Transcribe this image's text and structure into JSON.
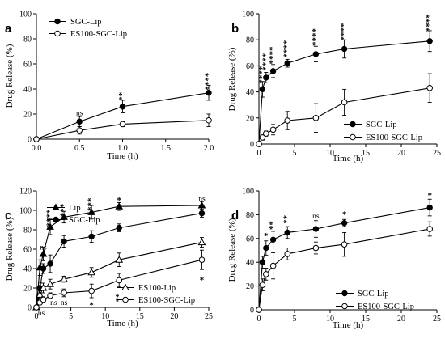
{
  "chart_data": [
    {
      "type": "line",
      "panel_label": "a",
      "xlabel": "Time (h)",
      "ylabel": "Drug Release  (%)",
      "xlim": [
        0,
        2.0
      ],
      "ylim": [
        0,
        100
      ],
      "xticks": [
        "0.0",
        "0.5",
        "1.0",
        "1.5",
        "2.0"
      ],
      "yticks": [
        "0",
        "20",
        "40",
        "60",
        "80",
        "100"
      ],
      "legend": "top-left",
      "series": [
        {
          "name": "SGC-Lip",
          "marker": "filled-circle",
          "x": [
            0,
            0.5,
            1.0,
            2.0
          ],
          "y": [
            0,
            14,
            26,
            37
          ],
          "err": [
            0,
            4,
            5,
            6
          ]
        },
        {
          "name": "ES100-SGC-Lip",
          "marker": "open-circle",
          "x": [
            0,
            0.5,
            1.0,
            2.0
          ],
          "y": [
            0,
            7,
            12,
            15
          ],
          "err": [
            0,
            3,
            2,
            5
          ]
        }
      ],
      "annotations": [
        {
          "text": "ns",
          "x": 0.5,
          "y": 21
        },
        {
          "text": "**",
          "x": 1.0,
          "y": 34
        },
        {
          "text": "****",
          "x": 2.0,
          "y": 46
        }
      ]
    },
    {
      "type": "line",
      "panel_label": "b",
      "xlabel": "Time (h)",
      "ylabel": "Drug Release  (%)",
      "xlim": [
        0,
        25
      ],
      "ylim": [
        0,
        100
      ],
      "xticks": [
        "0",
        "5",
        "10",
        "15",
        "20",
        "25"
      ],
      "yticks": [
        "0",
        "20",
        "40",
        "60",
        "80",
        "100"
      ],
      "legend": "bottom-right",
      "series": [
        {
          "name": "SGC-Lip",
          "marker": "filled-circle",
          "x": [
            0,
            0.5,
            1,
            2,
            4,
            8,
            12,
            24
          ],
          "y": [
            0,
            42,
            51,
            56,
            62,
            69,
            73,
            79
          ],
          "err": [
            0,
            6,
            4,
            5,
            3,
            6,
            7,
            8
          ]
        },
        {
          "name": "ES100-SGC-Lip",
          "marker": "open-circle",
          "x": [
            0,
            0.5,
            1,
            2,
            4,
            8,
            12,
            24
          ],
          "y": [
            0,
            5,
            8,
            11,
            18,
            20,
            32,
            43
          ],
          "err": [
            0,
            2,
            2,
            4,
            7,
            11,
            10,
            11
          ]
        }
      ],
      "annotations": [
        {
          "text": "****",
          "x": 0.5,
          "y": 53
        },
        {
          "text": "****",
          "x": 1,
          "y": 63
        },
        {
          "text": "****",
          "x": 2,
          "y": 68
        },
        {
          "text": "****",
          "x": 4,
          "y": 73
        },
        {
          "text": "****",
          "x": 8,
          "y": 82
        },
        {
          "text": "****",
          "x": 12,
          "y": 86
        },
        {
          "text": "****",
          "x": 24,
          "y": 93
        }
      ]
    },
    {
      "type": "line",
      "panel_label": "c",
      "xlabel": "Time (h)",
      "ylabel": "Drug Release  (%)",
      "xlim": [
        0,
        25
      ],
      "ylim": [
        0,
        120
      ],
      "xticks": [
        "0",
        "5",
        "10",
        "15",
        "20",
        "25"
      ],
      "yticks": [
        "0",
        "20",
        "40",
        "60",
        "80",
        "100",
        "120"
      ],
      "legend": "top-left and bottom-right",
      "series": [
        {
          "name": "Lip",
          "marker": "filled-triangle",
          "x": [
            0,
            0.5,
            1,
            2,
            4,
            8,
            12,
            24
          ],
          "y": [
            0,
            41,
            55,
            83,
            93,
            98,
            104,
            105
          ],
          "err": [
            0,
            8,
            7,
            8,
            6,
            7,
            4,
            4
          ]
        },
        {
          "name": "SGC-Lip",
          "marker": "filled-circle",
          "x": [
            0,
            0.5,
            1,
            2,
            4,
            8,
            12,
            24
          ],
          "y": [
            0,
            20,
            40,
            45,
            68,
            73,
            82,
            97
          ],
          "err": [
            0,
            6,
            5,
            9,
            6,
            6,
            4,
            4
          ]
        },
        {
          "name": "ES100-Lip",
          "marker": "open-triangle",
          "x": [
            0,
            0.5,
            1,
            2,
            4,
            8,
            12,
            24
          ],
          "y": [
            0,
            13,
            20,
            24,
            29,
            36,
            49,
            67
          ],
          "err": [
            0,
            4,
            5,
            5,
            3,
            5,
            7,
            5
          ]
        },
        {
          "name": "ES100-SGC-Lip",
          "marker": "open-circle",
          "x": [
            0,
            0.5,
            1,
            2,
            4,
            8,
            12,
            24
          ],
          "y": [
            0,
            5,
            8,
            12,
            15,
            17,
            28,
            49
          ],
          "err": [
            0,
            2,
            3,
            3,
            4,
            7,
            7,
            10
          ]
        }
      ],
      "annotations": [
        {
          "text": "ns",
          "x": 1,
          "y": 62
        },
        {
          "text": "****",
          "x": 2,
          "y": 92
        },
        {
          "text": "***",
          "x": 4,
          "y": 100
        },
        {
          "text": "***",
          "x": 8,
          "y": 106
        },
        {
          "text": "*",
          "x": 12,
          "y": 110
        },
        {
          "text": "ns",
          "x": 24,
          "y": 112
        },
        {
          "text": "ns",
          "x": 0.7,
          "y": -6
        },
        {
          "text": "ns",
          "x": 2.5,
          "y": 5
        },
        {
          "text": "ns",
          "x": 4,
          "y": 5
        },
        {
          "text": "*",
          "x": 8,
          "y": 2
        },
        {
          "text": "**",
          "x": 12,
          "y": 10
        },
        {
          "text": "*",
          "x": 24,
          "y": 28
        }
      ]
    },
    {
      "type": "line",
      "panel_label": "d",
      "xlabel": "Time (h)",
      "ylabel": "Drug Release  (%)",
      "xlim": [
        0,
        25
      ],
      "ylim": [
        0,
        100
      ],
      "xticks": [
        "0",
        "5",
        "10",
        "15",
        "20",
        "25"
      ],
      "yticks": [
        "0",
        "20",
        "40",
        "60",
        "80",
        "100"
      ],
      "legend": "bottom-right",
      "series": [
        {
          "name": "SGC-Lip",
          "marker": "filled-circle",
          "x": [
            0,
            0.5,
            1,
            2,
            4,
            8,
            12,
            24
          ],
          "y": [
            0,
            40,
            52,
            59,
            65,
            68,
            73,
            86
          ],
          "err": [
            0,
            5,
            6,
            7,
            5,
            7,
            3,
            7
          ]
        },
        {
          "name": "ES100-SGC-Lip",
          "marker": "open-circle",
          "x": [
            0,
            0.5,
            1,
            2,
            4,
            8,
            12,
            24
          ],
          "y": [
            0,
            21,
            30,
            37,
            47,
            52,
            55,
            68
          ],
          "err": [
            0,
            5,
            5,
            11,
            5,
            5,
            10,
            6
          ]
        }
      ],
      "annotations": [
        {
          "text": "*",
          "x": 1,
          "y": 62
        },
        {
          "text": "**",
          "x": 2,
          "y": 71
        },
        {
          "text": "**",
          "x": 4,
          "y": 76
        },
        {
          "text": "ns",
          "x": 8,
          "y": 79
        },
        {
          "text": "*",
          "x": 12,
          "y": 80
        },
        {
          "text": "*",
          "x": 24,
          "y": 96
        }
      ]
    }
  ]
}
